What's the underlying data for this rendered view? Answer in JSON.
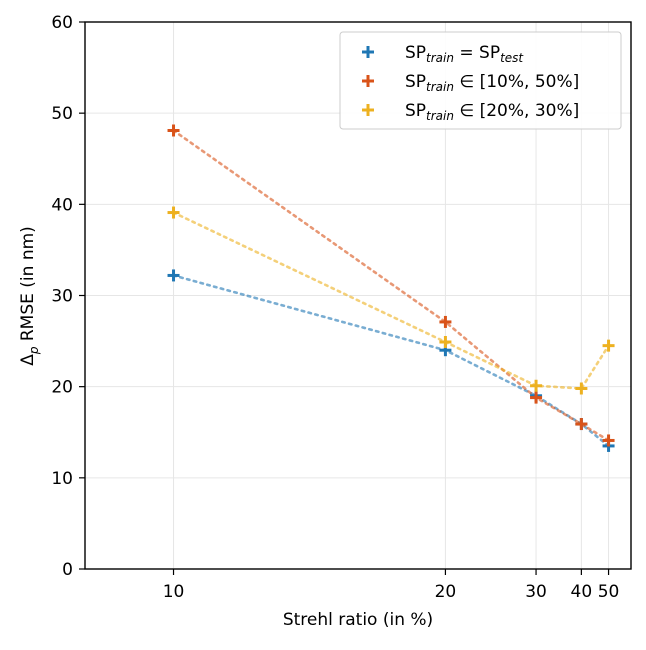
{
  "chart_data": {
    "type": "line",
    "xscale": "reciprocal",
    "xlabel": "Strehl ratio (in %)",
    "ylabel_main": "Δ",
    "ylabel_sub": "p",
    "ylabel_rest": " RMSE (in nm)",
    "xlim": [
      8.6,
      63
    ],
    "ylim": [
      0,
      60
    ],
    "xticks": [
      10,
      20,
      30,
      40,
      50
    ],
    "yticks": [
      0,
      10,
      20,
      30,
      40,
      50,
      60
    ],
    "grid": true,
    "legend_position": "top-right",
    "x": [
      10,
      20,
      30,
      40,
      50
    ],
    "series": [
      {
        "name": "SP_train = SP_test",
        "legend_parts": [
          [
            "SP",
            ""
          ],
          [
            "train",
            "sub"
          ],
          [
            " = SP",
            ""
          ],
          [
            "test",
            "sub"
          ]
        ],
        "color": "#1f77b4",
        "values": [
          32.2,
          24.0,
          19.0,
          15.9,
          13.5
        ]
      },
      {
        "name": "SP_train ∈ [10%, 50%]",
        "legend_parts": [
          [
            "SP",
            ""
          ],
          [
            "train",
            "sub"
          ],
          [
            " ∈ [10%, 50%]",
            ""
          ]
        ],
        "color": "#d95319",
        "values": [
          48.1,
          27.1,
          18.8,
          15.9,
          14.1
        ]
      },
      {
        "name": "SP_train ∈ [20%, 30%]",
        "legend_parts": [
          [
            "SP",
            ""
          ],
          [
            "train",
            "sub"
          ],
          [
            " ∈ [20%, 30%]",
            ""
          ]
        ],
        "color": "#edb120",
        "values": [
          39.1,
          24.9,
          20.1,
          19.8,
          24.5
        ]
      }
    ]
  }
}
